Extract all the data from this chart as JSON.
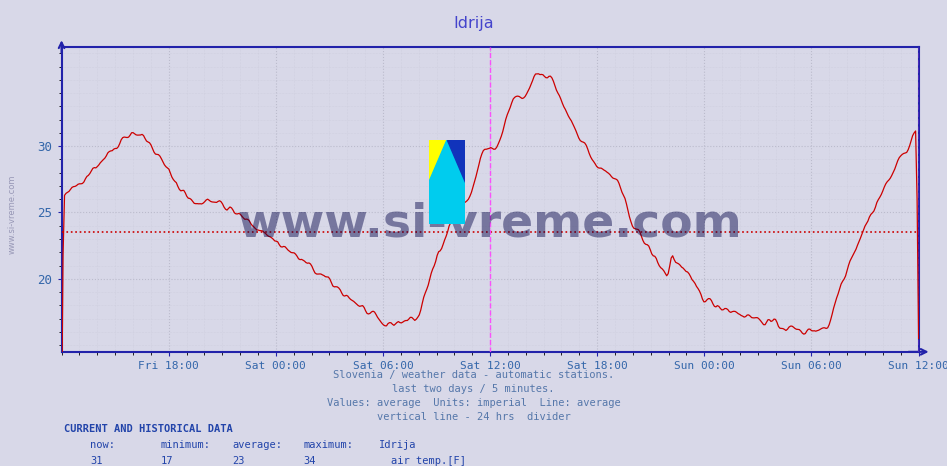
{
  "title": "Idrija",
  "title_color": "#4444cc",
  "bg_color": "#d8d8e8",
  "plot_bg_color": "#d8d8e8",
  "line_color": "#cc0000",
  "avg_line_color": "#cc0000",
  "avg_value": 23.5,
  "vline_color": "#ff44ff",
  "grid_color": "#bbbbcc",
  "axis_color": "#2222aa",
  "tick_label_color": "#3366aa",
  "yticks": [
    20,
    25,
    30
  ],
  "ymin": 14.5,
  "ymax": 37.5,
  "total_hours": 48,
  "subtitle_lines": [
    "Slovenia / weather data - automatic stations.",
    "last two days / 5 minutes.",
    "Values: average  Units: imperial  Line: average",
    "vertical line - 24 hrs  divider"
  ],
  "subtitle_color": "#5577aa",
  "bottom_label_color": "#2244aa",
  "bottom_header": "CURRENT AND HISTORICAL DATA",
  "bottom_cols": [
    "now:",
    "minimum:",
    "average:",
    "maximum:",
    "Idrija"
  ],
  "bottom_vals": [
    "31",
    "17",
    "23",
    "34",
    "air temp.[F]"
  ],
  "legend_color": "#cc0000",
  "watermark_text": "www.si-vreme.com",
  "si_vreme_font_size": 34,
  "left_watermark": "www.si-vreme.com"
}
